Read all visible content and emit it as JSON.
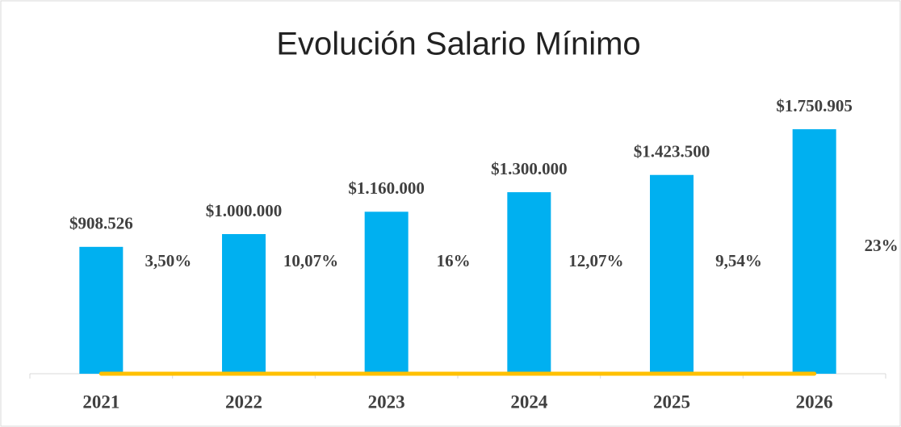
{
  "chart_data": {
    "type": "bar",
    "title": "Evolución Salario Mínimo",
    "categories": [
      "2021",
      "2022",
      "2023",
      "2024",
      "2025",
      "2026"
    ],
    "series": [
      {
        "type": "bar",
        "color": "#00b0f0",
        "values": [
          908526,
          1000000,
          1160000,
          1300000,
          1423500,
          1750905
        ],
        "value_labels": [
          "$908.526",
          "$1.000.000",
          "$1.160.000",
          "$1.300.000",
          "$1.423.500",
          "$1.750.905"
        ]
      },
      {
        "type": "line",
        "color": "#ffc000",
        "values": [
          3.5,
          10.07,
          16,
          12.07,
          9.54,
          23
        ],
        "value_labels": [
          "3,50%",
          "10,07%",
          "16%",
          "12,07%",
          "9,54%",
          "23%"
        ]
      }
    ],
    "ylim": [
      0,
      2000000
    ]
  }
}
